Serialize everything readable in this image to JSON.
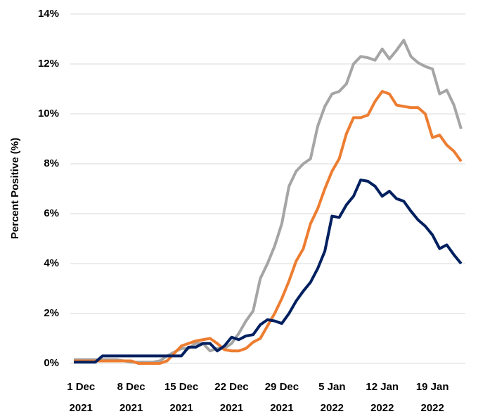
{
  "chart_data": {
    "type": "line",
    "y_label": "Percent Positive (%)",
    "x": [
      "2021-11-30",
      "2021-12-01",
      "2021-12-02",
      "2021-12-03",
      "2021-12-04",
      "2021-12-05",
      "2021-12-06",
      "2021-12-07",
      "2021-12-08",
      "2021-12-09",
      "2021-12-10",
      "2021-12-11",
      "2021-12-12",
      "2021-12-13",
      "2021-12-14",
      "2021-12-15",
      "2021-12-16",
      "2021-12-17",
      "2021-12-18",
      "2021-12-19",
      "2021-12-20",
      "2021-12-21",
      "2021-12-22",
      "2021-12-23",
      "2021-12-24",
      "2021-12-25",
      "2021-12-26",
      "2021-12-27",
      "2021-12-28",
      "2021-12-29",
      "2021-12-30",
      "2021-12-31",
      "2022-01-01",
      "2022-01-02",
      "2022-01-03",
      "2022-01-04",
      "2022-01-05",
      "2022-01-06",
      "2022-01-07",
      "2022-01-08",
      "2022-01-09",
      "2022-01-10",
      "2022-01-11",
      "2022-01-12",
      "2022-01-13",
      "2022-01-14",
      "2022-01-15",
      "2022-01-16",
      "2022-01-17",
      "2022-01-18",
      "2022-01-19",
      "2022-01-20",
      "2022-01-21",
      "2022-01-22",
      "2022-01-23"
    ],
    "series": [
      {
        "color": "#a5a5a5",
        "values": [
          0.15,
          0.15,
          0.15,
          0.15,
          0.15,
          0.15,
          0.15,
          0.1,
          0.05,
          0.05,
          0.05,
          0.05,
          0.1,
          0.3,
          0.45,
          0.6,
          0.6,
          0.8,
          0.8,
          0.5,
          0.6,
          0.6,
          0.8,
          1.2,
          1.7,
          2.1,
          3.4,
          4.0,
          4.7,
          5.6,
          7.1,
          7.7,
          8.0,
          8.2,
          9.5,
          10.3,
          10.8,
          10.9,
          11.2,
          12.0,
          12.3,
          12.25,
          12.15,
          12.6,
          12.2,
          12.55,
          12.95,
          12.3,
          12.05,
          11.9,
          11.8,
          10.8,
          10.95,
          10.35,
          9.4
        ]
      },
      {
        "color": "#ed7d31",
        "values": [
          0.1,
          0.1,
          0.1,
          0.1,
          0.1,
          0.1,
          0.1,
          0.1,
          0.1,
          0,
          0,
          0,
          0,
          0.1,
          0.4,
          0.7,
          0.8,
          0.9,
          0.95,
          1.0,
          0.8,
          0.55,
          0.5,
          0.5,
          0.6,
          0.85,
          1.0,
          1.5,
          2.0,
          2.6,
          3.3,
          4.1,
          4.6,
          5.6,
          6.2,
          7.0,
          7.7,
          8.2,
          9.2,
          9.85,
          9.85,
          9.95,
          10.5,
          10.9,
          10.8,
          10.35,
          10.3,
          10.25,
          10.25,
          10.0,
          9.05,
          9.15,
          8.75,
          8.5,
          8.1
        ]
      },
      {
        "color": "#002060",
        "values": [
          0.05,
          0.05,
          0.05,
          0.05,
          0.3,
          0.3,
          0.3,
          0.3,
          0.3,
          0.3,
          0.3,
          0.3,
          0.3,
          0.3,
          0.3,
          0.3,
          0.65,
          0.65,
          0.8,
          0.8,
          0.5,
          0.7,
          1.05,
          0.95,
          1.1,
          1.15,
          1.55,
          1.75,
          1.7,
          1.6,
          2.0,
          2.5,
          2.9,
          3.25,
          3.8,
          4.5,
          5.9,
          5.85,
          6.35,
          6.7,
          7.35,
          7.3,
          7.1,
          6.7,
          6.9,
          6.6,
          6.5,
          6.1,
          5.75,
          5.5,
          5.15,
          4.6,
          4.75,
          4.35,
          4.0
        ]
      }
    ],
    "xlim": [
      "2021-11-30",
      "2022-01-23"
    ],
    "xticks": [
      {
        "value": "2021-12-01",
        "label": "1 Dec 2021"
      },
      {
        "value": "2021-12-08",
        "label": "8 Dec 2021"
      },
      {
        "value": "2021-12-15",
        "label": "15 Dec 2021"
      },
      {
        "value": "2021-12-22",
        "label": "22 Dec 2021"
      },
      {
        "value": "2021-12-29",
        "label": "29 Dec 2021"
      },
      {
        "value": "2022-01-05",
        "label": "5 Jan 2022"
      },
      {
        "value": "2022-01-12",
        "label": "12 Jan 2022"
      },
      {
        "value": "2022-01-19",
        "label": "19 Jan 2022"
      }
    ],
    "ylim": [
      0,
      14
    ],
    "yticks": [
      {
        "value": 0,
        "label": "0%"
      },
      {
        "value": 2,
        "label": "2%"
      },
      {
        "value": 4,
        "label": "4%"
      },
      {
        "value": 6,
        "label": "6%"
      },
      {
        "value": 8,
        "label": "8%"
      },
      {
        "value": 10,
        "label": "10%"
      },
      {
        "value": 12,
        "label": "12%"
      },
      {
        "value": 14,
        "label": "14%"
      }
    ],
    "grid": true
  }
}
